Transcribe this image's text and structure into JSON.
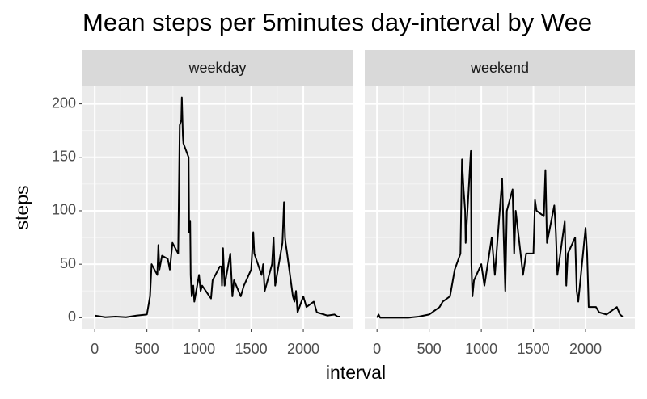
{
  "title": "Mean steps per 5minutes day-interval by Wee",
  "x_label": "interval",
  "y_label": "steps",
  "chart_data": [
    {
      "type": "line",
      "title": "weekday",
      "color": "#000000",
      "grid": true,
      "x": [
        0,
        100,
        200,
        300,
        400,
        500,
        530,
        545,
        600,
        610,
        620,
        645,
        700,
        720,
        745,
        800,
        815,
        830,
        835,
        845,
        850,
        900,
        905,
        915,
        920,
        930,
        945,
        955,
        1000,
        1015,
        1030,
        1100,
        1115,
        1130,
        1200,
        1215,
        1220,
        1230,
        1245,
        1300,
        1320,
        1335,
        1400,
        1430,
        1500,
        1520,
        1530,
        1600,
        1615,
        1630,
        1700,
        1715,
        1730,
        1800,
        1815,
        1825,
        1830,
        1845,
        1900,
        1915,
        1930,
        1945,
        2000,
        2030,
        2100,
        2130,
        2200,
        2230,
        2300,
        2330,
        2355
      ],
      "values": [
        2,
        0.5,
        1,
        0.5,
        2,
        3,
        20,
        50,
        40,
        68,
        45,
        58,
        55,
        45,
        70,
        60,
        180,
        185,
        206,
        170,
        163,
        150,
        80,
        90,
        40,
        20,
        30,
        15,
        40,
        25,
        30,
        20,
        18,
        35,
        48,
        48,
        30,
        65,
        30,
        60,
        20,
        35,
        20,
        30,
        45,
        80,
        60,
        40,
        50,
        25,
        50,
        75,
        30,
        70,
        108,
        75,
        70,
        60,
        20,
        15,
        25,
        5,
        20,
        10,
        15,
        5,
        3,
        2,
        3,
        1,
        1
      ],
      "xlim": [
        -117.75,
        2472.75
      ],
      "ylim": [
        -10.3,
        216.3
      ],
      "xticks": [
        0,
        500,
        1000,
        1500,
        2000
      ],
      "yticks": [
        0,
        50,
        100,
        150,
        200
      ]
    },
    {
      "type": "line",
      "title": "weekend",
      "color": "#000000",
      "grid": true,
      "x": [
        0,
        15,
        30,
        100,
        200,
        300,
        400,
        500,
        530,
        600,
        630,
        700,
        745,
        800,
        815,
        830,
        845,
        850,
        900,
        905,
        915,
        930,
        1000,
        1030,
        1100,
        1130,
        1200,
        1215,
        1230,
        1245,
        1300,
        1315,
        1330,
        1400,
        1430,
        1500,
        1515,
        1530,
        1600,
        1615,
        1630,
        1700,
        1715,
        1730,
        1800,
        1815,
        1830,
        1900,
        1915,
        1930,
        2000,
        2015,
        2030,
        2100,
        2130,
        2200,
        2230,
        2300,
        2330,
        2355
      ],
      "values": [
        0,
        3,
        0,
        0,
        0,
        0,
        1,
        3,
        5,
        10,
        15,
        20,
        45,
        60,
        148,
        120,
        100,
        70,
        156,
        50,
        20,
        35,
        50,
        30,
        75,
        40,
        130,
        75,
        25,
        100,
        120,
        60,
        100,
        40,
        60,
        60,
        110,
        100,
        95,
        138,
        70,
        105,
        80,
        40,
        90,
        30,
        60,
        75,
        25,
        15,
        84,
        60,
        10,
        10,
        5,
        3,
        5,
        10,
        3,
        1
      ],
      "xlim": [
        -117.75,
        2472.75
      ],
      "ylim": [
        -10.3,
        216.3
      ],
      "xticks": [
        0,
        500,
        1000,
        1500,
        2000
      ],
      "yticks": [
        0,
        50,
        100,
        150,
        200
      ]
    }
  ]
}
